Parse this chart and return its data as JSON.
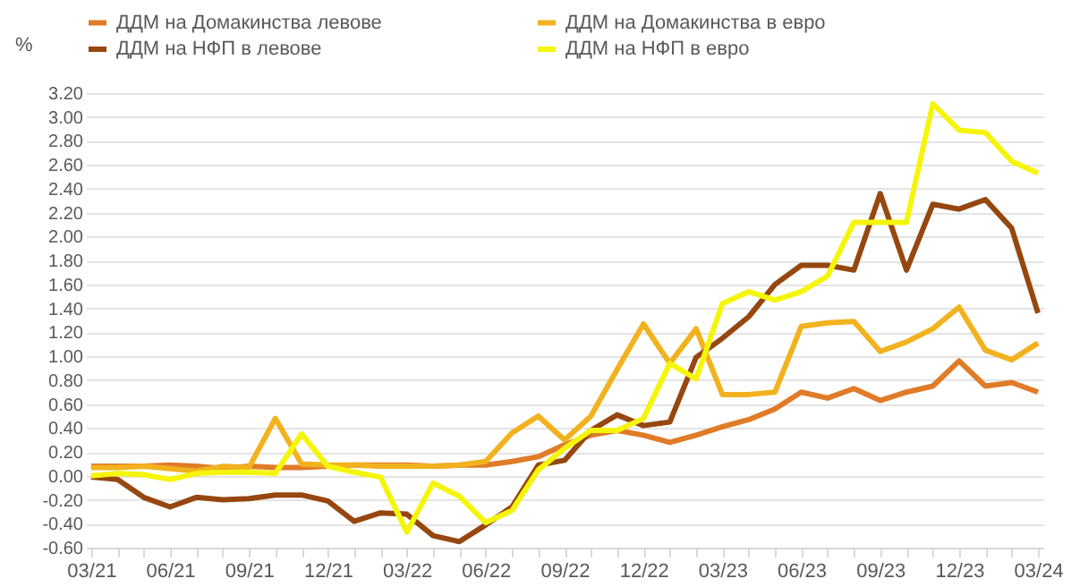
{
  "chart_data": {
    "type": "line",
    "ylabel": "%",
    "categories": [
      "03/21",
      null,
      null,
      "06/21",
      null,
      null,
      "09/21",
      null,
      null,
      "12/21",
      null,
      null,
      "03/22",
      null,
      null,
      "06/22",
      null,
      null,
      "09/22",
      null,
      null,
      "12/22",
      null,
      null,
      "03/23",
      null,
      null,
      "06/23",
      null,
      null,
      "09/23",
      null,
      null,
      "12/23",
      null,
      null,
      "03/24"
    ],
    "series": [
      {
        "name": "ДДМ на Домакинства левове",
        "color": "#e07b28",
        "values": [
          0.08,
          0.08,
          0.08,
          0.09,
          0.08,
          0.06,
          0.08,
          0.07,
          0.07,
          0.08,
          0.09,
          0.09,
          0.09,
          0.08,
          0.09,
          0.09,
          0.12,
          0.16,
          0.26,
          0.34,
          0.38,
          0.34,
          0.28,
          0.34,
          0.41,
          0.47,
          0.56,
          0.7,
          0.65,
          0.73,
          0.63,
          0.7,
          0.75,
          0.96,
          0.75,
          0.78,
          0.7
        ]
      },
      {
        "name": "ДДМ на Домакинства в евро",
        "color": "#f2b21e",
        "values": [
          0.07,
          0.07,
          0.08,
          0.06,
          0.04,
          0.08,
          0.07,
          0.48,
          0.1,
          0.09,
          0.09,
          0.08,
          0.08,
          0.08,
          0.09,
          0.12,
          0.36,
          0.5,
          0.3,
          0.5,
          0.89,
          1.27,
          0.94,
          1.23,
          0.68,
          0.68,
          0.7,
          1.25,
          1.28,
          1.29,
          1.04,
          1.12,
          1.23,
          1.41,
          1.05,
          0.97,
          1.11
        ]
      },
      {
        "name": "ДДМ на НФП  в левове",
        "color": "#96470f",
        "values": [
          -0.01,
          -0.03,
          -0.18,
          -0.26,
          -0.18,
          -0.2,
          -0.19,
          -0.16,
          -0.16,
          -0.21,
          -0.38,
          -0.31,
          -0.32,
          -0.5,
          -0.55,
          -0.41,
          -0.26,
          0.09,
          0.13,
          0.38,
          0.51,
          0.42,
          0.45,
          0.99,
          1.15,
          1.33,
          1.6,
          1.76,
          1.76,
          1.72,
          2.36,
          1.72,
          2.27,
          2.23,
          2.31,
          2.07,
          1.36
        ]
      },
      {
        "name": "ДДМ на НФП  в евро",
        "color": "#f5f50a",
        "values": [
          0.0,
          0.02,
          0.01,
          -0.03,
          0.02,
          0.03,
          0.03,
          0.02,
          0.35,
          0.08,
          0.03,
          -0.01,
          -0.47,
          -0.06,
          -0.17,
          -0.39,
          -0.29,
          0.05,
          0.23,
          0.38,
          0.38,
          0.48,
          0.94,
          0.81,
          1.44,
          1.54,
          1.47,
          1.54,
          1.67,
          2.12,
          2.12,
          2.12,
          3.11,
          2.89,
          2.87,
          2.63,
          2.53
        ]
      }
    ],
    "ylim": [
      -0.6,
      3.2
    ],
    "yticks": [
      {
        "value": -0.6,
        "label": "-0.60"
      },
      {
        "value": -0.4,
        "label": "-0.40"
      },
      {
        "value": -0.2,
        "label": "-0.20"
      },
      {
        "value": 0,
        "label": "0.00"
      },
      {
        "value": 0.2,
        "label": "0.20"
      },
      {
        "value": 0.4,
        "label": "0.40"
      },
      {
        "value": 0.6,
        "label": "0.60"
      },
      {
        "value": 0.8,
        "label": "0.80"
      },
      {
        "value": 1.0,
        "label": "1.00"
      },
      {
        "value": 1.2,
        "label": "1.20"
      },
      {
        "value": 1.4,
        "label": "1.40"
      },
      {
        "value": 1.6,
        "label": "1.60"
      },
      {
        "value": 1.8,
        "label": "1.80"
      },
      {
        "value": 2.0,
        "label": "2.00"
      },
      {
        "value": 2.2,
        "label": "2.20"
      },
      {
        "value": 2.4,
        "label": "2.40"
      },
      {
        "value": 2.6,
        "label": "2.60"
      },
      {
        "value": 2.8,
        "label": "2.80"
      },
      {
        "value": 3.0,
        "label": "3.00"
      },
      {
        "value": 3.2,
        "label": "3.20"
      }
    ],
    "grid": "y",
    "legend": "top",
    "line_style": "solid",
    "marker": "none"
  }
}
